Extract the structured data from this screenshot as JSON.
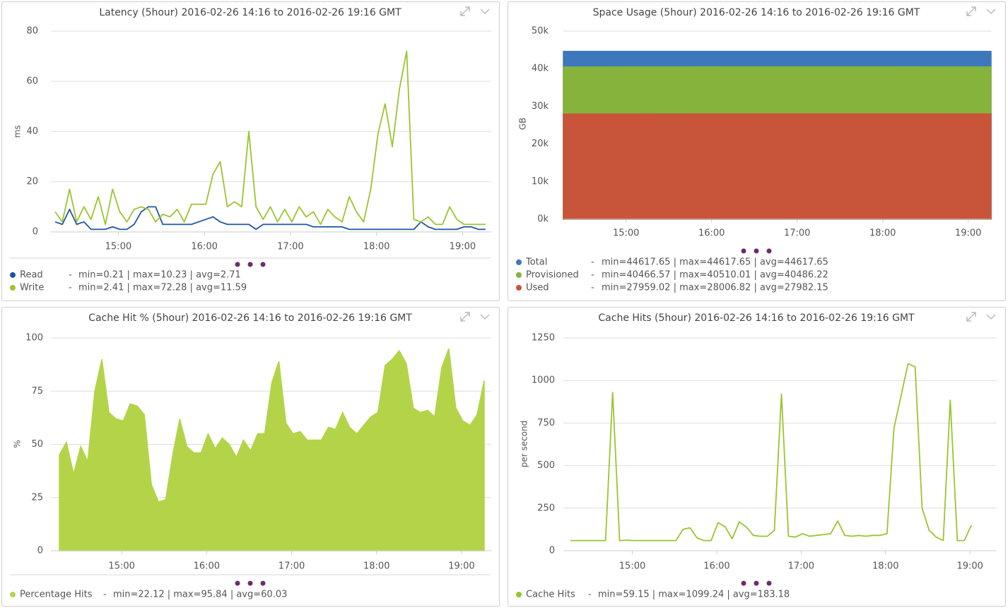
{
  "chart_data": [
    {
      "type": "line",
      "title": "Latency (5hour) 2016-02-26 14:16 to 2016-02-26 19:16 GMT",
      "y_label": "ms",
      "legend_separator": "-",
      "xlim": [
        "14:13",
        "19:20"
      ],
      "xticks": [
        "15:00",
        "16:00",
        "17:00",
        "18:00",
        "19:00"
      ],
      "ylim": [
        0,
        80
      ],
      "yticks": [
        0,
        20,
        40,
        60,
        80
      ],
      "grid": true,
      "x": [
        "14:16",
        "14:21",
        "14:26",
        "14:31",
        "14:36",
        "14:41",
        "14:46",
        "14:51",
        "14:56",
        "15:01",
        "15:06",
        "15:11",
        "15:16",
        "15:21",
        "15:26",
        "15:31",
        "15:36",
        "15:41",
        "15:46",
        "15:51",
        "15:56",
        "16:01",
        "16:06",
        "16:11",
        "16:16",
        "16:21",
        "16:26",
        "16:31",
        "16:36",
        "16:41",
        "16:46",
        "16:51",
        "16:56",
        "17:01",
        "17:06",
        "17:11",
        "17:16",
        "17:21",
        "17:26",
        "17:31",
        "17:36",
        "17:41",
        "17:46",
        "17:51",
        "17:56",
        "18:01",
        "18:06",
        "18:11",
        "18:16",
        "18:21",
        "18:26",
        "18:31",
        "18:36",
        "18:41",
        "18:46",
        "18:51",
        "18:56",
        "19:01",
        "19:06",
        "19:11",
        "19:16"
      ],
      "series": [
        {
          "name": "Read",
          "color": "#1f56a0",
          "stats": "min=0.21 | max=10.23 | avg=2.71",
          "values": [
            4,
            3,
            9,
            3,
            4,
            1,
            1,
            1,
            2,
            1,
            1,
            3,
            8,
            10,
            10,
            3,
            3,
            3,
            3,
            3,
            4,
            5,
            6,
            4,
            3,
            3,
            3,
            3,
            1,
            3,
            3,
            3,
            3,
            3,
            3,
            3,
            2,
            2,
            2,
            2,
            2,
            1,
            1,
            1,
            1,
            1,
            1,
            1,
            1,
            1,
            1,
            4,
            2,
            1,
            1,
            1,
            1,
            2,
            2,
            1,
            1
          ]
        },
        {
          "name": "Write",
          "color": "#9ac530",
          "stats": "min=2.41 | max=72.28 | avg=11.59",
          "values": [
            8,
            4,
            17,
            4,
            10,
            5,
            14,
            3,
            17,
            8,
            4,
            9,
            10,
            9,
            4,
            7,
            6,
            9,
            4,
            11,
            11,
            11,
            23,
            28,
            10,
            12,
            10,
            40,
            10,
            5,
            10,
            4,
            9,
            4,
            10,
            6,
            8,
            3,
            9,
            6,
            4,
            14,
            8,
            4,
            17,
            39,
            51,
            34,
            57,
            72,
            5,
            4,
            6,
            3,
            3,
            10,
            5,
            3,
            3,
            3,
            3
          ]
        }
      ]
    },
    {
      "type": "area",
      "title": "Space Usage (5hour) 2016-02-26 14:16 to 2016-02-26 19:16 GMT",
      "y_label": "GB",
      "legend_separator": "-",
      "xlim": [
        "14:16",
        "19:16"
      ],
      "xticks": [
        "15:00",
        "16:00",
        "17:00",
        "18:00",
        "19:00"
      ],
      "ylim": [
        0,
        50000
      ],
      "yticks": [
        {
          "value": 0,
          "label": "0k"
        },
        {
          "value": 10000,
          "label": "10k"
        },
        {
          "value": 20000,
          "label": "20k"
        },
        {
          "value": 30000,
          "label": "30k"
        },
        {
          "value": 40000,
          "label": "40k"
        },
        {
          "value": 50000,
          "label": "50k"
        }
      ],
      "grid": true,
      "x": [
        "14:16",
        "16:46",
        "19:16"
      ],
      "series": [
        {
          "name": "Total",
          "color": "#3d78bd",
          "stats": "min=44617.65 | max=44617.65 | avg=44617.65",
          "values": [
            44617.65,
            44617.65,
            44617.65
          ]
        },
        {
          "name": "Provisioned",
          "color": "#86b33c",
          "stats": "min=40466.57 | max=40510.01 | avg=40486.22",
          "values": [
            40466.57,
            40510.01,
            40486.22
          ]
        },
        {
          "name": "Used",
          "color": "#c8543a",
          "stats": "min=27959.02 | max=28006.82 | avg=27982.15",
          "values": [
            27959.02,
            28006.82,
            27982.15
          ]
        }
      ]
    },
    {
      "type": "area",
      "title": "Cache Hit % (5hour) 2016-02-26 14:16 to 2016-02-26 19:16 GMT",
      "y_label": "%",
      "legend_separator": "-",
      "xlim": [
        "14:10",
        "19:21"
      ],
      "xticks": [
        "15:00",
        "16:00",
        "17:00",
        "18:00",
        "19:00"
      ],
      "ylim": [
        0,
        100
      ],
      "yticks": [
        0,
        25,
        50,
        75,
        100
      ],
      "grid": true,
      "x": [
        "14:16",
        "14:21",
        "14:26",
        "14:31",
        "14:36",
        "14:41",
        "14:46",
        "14:51",
        "14:56",
        "15:01",
        "15:06",
        "15:11",
        "15:16",
        "15:21",
        "15:26",
        "15:31",
        "15:36",
        "15:41",
        "15:46",
        "15:51",
        "15:56",
        "16:01",
        "16:06",
        "16:11",
        "16:16",
        "16:21",
        "16:26",
        "16:31",
        "16:36",
        "16:41",
        "16:46",
        "16:51",
        "16:56",
        "17:01",
        "17:06",
        "17:11",
        "17:16",
        "17:21",
        "17:26",
        "17:31",
        "17:36",
        "17:41",
        "17:46",
        "17:51",
        "17:56",
        "18:01",
        "18:06",
        "18:11",
        "18:16",
        "18:21",
        "18:26",
        "18:31",
        "18:36",
        "18:41",
        "18:46",
        "18:51",
        "18:56",
        "19:01",
        "19:06",
        "19:11",
        "19:16"
      ],
      "series": [
        {
          "name": "Percentage Hits",
          "color": "#b3d449",
          "stats": "min=22.12 | max=95.84 | avg=60.03",
          "values": [
            45,
            51,
            36,
            49,
            42,
            75,
            90,
            65,
            62,
            61,
            69,
            68,
            64,
            31,
            23,
            24,
            45,
            62,
            49,
            46,
            46,
            55,
            48,
            53,
            50,
            44,
            52,
            47,
            55,
            55,
            79,
            89,
            60,
            55,
            56,
            52,
            52,
            52,
            58,
            57,
            65,
            58,
            55,
            59,
            63,
            65,
            87,
            90,
            94,
            88,
            67,
            65,
            66,
            63,
            86,
            95,
            67,
            61,
            59,
            64,
            80
          ]
        }
      ]
    },
    {
      "type": "line",
      "title": "Cache Hits (5hour) 2016-02-26 14:16 to 2016-02-26 19:16 GMT",
      "y_label": "per second",
      "legend_separator": "-",
      "xlim": [
        "14:11",
        "19:19"
      ],
      "xticks": [
        "15:00",
        "16:00",
        "17:00",
        "18:00",
        "19:00"
      ],
      "ylim": [
        0,
        1250
      ],
      "yticks": [
        0,
        250,
        500,
        750,
        1000,
        1250
      ],
      "grid": true,
      "x": [
        "14:16",
        "14:21",
        "14:26",
        "14:31",
        "14:36",
        "14:41",
        "14:46",
        "14:51",
        "14:56",
        "15:01",
        "15:06",
        "15:11",
        "15:16",
        "15:21",
        "15:26",
        "15:31",
        "15:36",
        "15:41",
        "15:46",
        "15:51",
        "15:56",
        "16:01",
        "16:06",
        "16:11",
        "16:16",
        "16:21",
        "16:26",
        "16:31",
        "16:36",
        "16:41",
        "16:46",
        "16:51",
        "16:56",
        "17:01",
        "17:06",
        "17:11",
        "17:16",
        "17:21",
        "17:26",
        "17:31",
        "17:36",
        "17:41",
        "17:46",
        "17:51",
        "17:56",
        "18:01",
        "18:06",
        "18:11",
        "18:16",
        "18:21",
        "18:26",
        "18:31",
        "18:36",
        "18:41",
        "18:46",
        "18:51",
        "18:56",
        "19:01"
      ],
      "series": [
        {
          "name": "Cache Hits",
          "color": "#9ac530",
          "stats": "min=59.15 | max=1099.24 | avg=183.18",
          "values": [
            60,
            60,
            60,
            60,
            60,
            60,
            930,
            60,
            62,
            60,
            60,
            60,
            60,
            60,
            60,
            60,
            125,
            135,
            75,
            60,
            60,
            165,
            140,
            70,
            170,
            140,
            90,
            85,
            85,
            120,
            920,
            85,
            80,
            100,
            85,
            90,
            95,
            100,
            175,
            90,
            85,
            90,
            85,
            90,
            90,
            100,
            720,
            910,
            1099,
            1080,
            250,
            120,
            80,
            60,
            885,
            60,
            60,
            150
          ]
        }
      ]
    }
  ]
}
